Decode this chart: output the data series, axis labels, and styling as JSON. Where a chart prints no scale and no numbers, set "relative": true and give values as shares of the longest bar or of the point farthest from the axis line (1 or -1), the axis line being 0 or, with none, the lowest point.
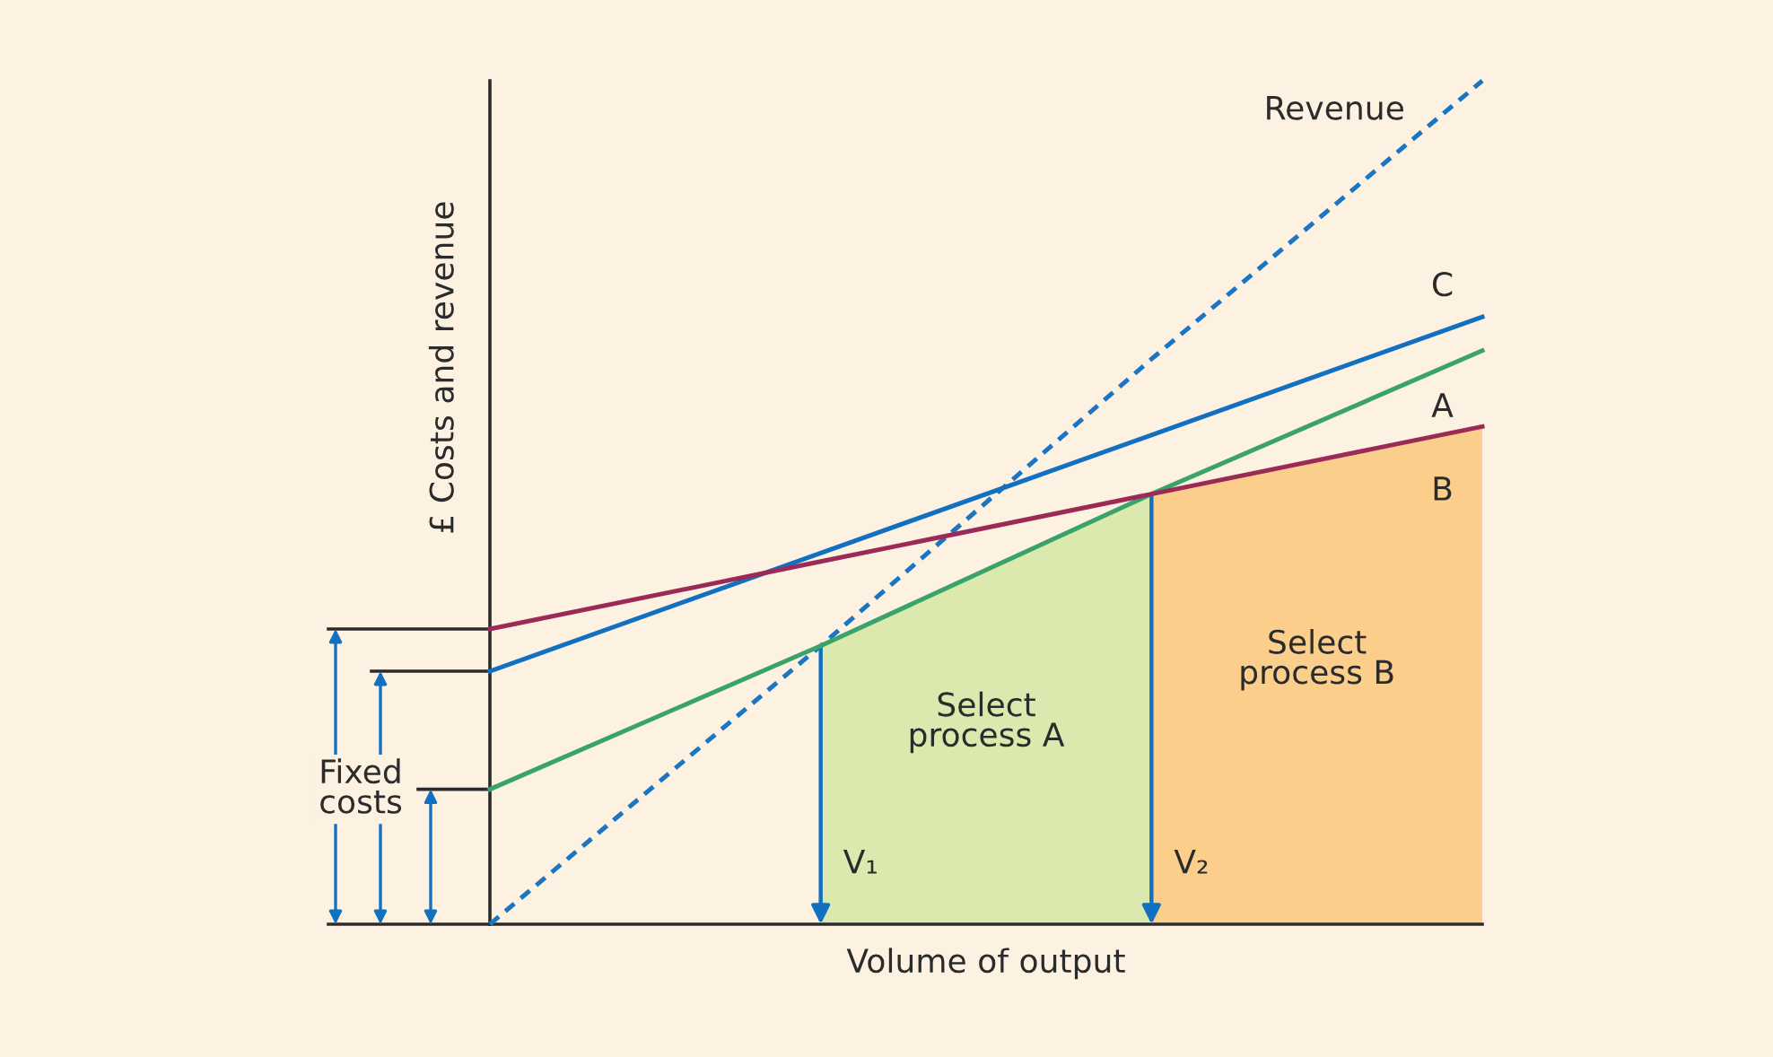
{
  "chart_data": {
    "type": "line",
    "relative": true,
    "xlabel": "Volume of output",
    "ylabel": "£ Costs and revenue",
    "categories": [
      null,
      null,
      null,
      null
    ],
    "line_style": "solid",
    "series": [
      {
        "name": "Revenue",
        "color": "#1a75c2",
        "line_style": "dashed",
        "values": [
          0,
          0.33,
          0.67,
          1
        ]
      },
      {
        "name": "C",
        "color": "#1170c0",
        "values": [
          0.3,
          0.44,
          0.58,
          0.72
        ]
      },
      {
        "name": "A",
        "color": "#3aa36a",
        "values": [
          0.16,
          0.33,
          0.51,
          0.68
        ]
      },
      {
        "name": "B",
        "color": "#9c2a56",
        "values": [
          0.35,
          0.43,
          0.51,
          0.59
        ]
      },
      {
        "name": "Select\nprocess A",
        "type": "area",
        "color": "#dbe8ae",
        "values": [
          null,
          0.33,
          0.51,
          null
        ]
      },
      {
        "name": "Select\nprocess B",
        "type": "area",
        "color": "#fcce8c",
        "values": [
          null,
          null,
          0.51,
          0.59
        ]
      }
    ],
    "annotations": [
      "Fixed\ncosts",
      "V₁",
      "V₂"
    ]
  }
}
